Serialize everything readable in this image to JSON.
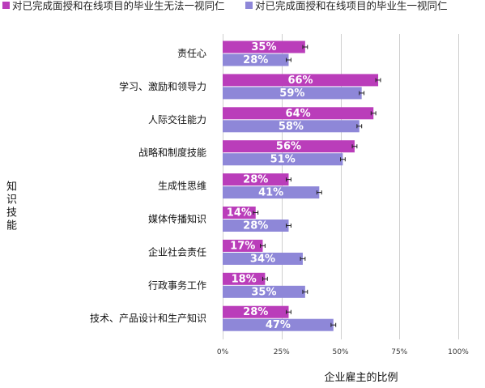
{
  "chart_data": {
    "type": "bar",
    "orientation": "horizontal",
    "categories": [
      "责任心",
      "学习、激励和领导力",
      "人际交往能力",
      "战略和制度技能",
      "生成性思维",
      "媒体传播知识",
      "企业社会责任",
      "行政事务工作",
      "技术、产品设计和生产知识"
    ],
    "series": [
      {
        "name": "对已完成面授和在线项目的毕业生无法一视同仁",
        "color": "#BA3DBA",
        "values": [
          35,
          66,
          64,
          56,
          28,
          14,
          17,
          18,
          28
        ],
        "error": [
          1,
          1,
          1,
          1,
          1,
          1,
          1,
          1,
          1
        ]
      },
      {
        "name": "对已完成面授和在线项目的毕业生一视同仁",
        "color": "#8E87D8",
        "values": [
          28,
          59,
          58,
          51,
          41,
          28,
          34,
          35,
          47
        ],
        "error": [
          1,
          1,
          1,
          1,
          1,
          1,
          1,
          1,
          1
        ]
      }
    ],
    "unit": "%",
    "data_label_color": "#FFFFFF",
    "xlabel": "企业雇主的比例",
    "ylabel": "知识技能",
    "xlim": [
      0,
      100
    ],
    "xticks": [
      0,
      25,
      50,
      75,
      100
    ],
    "xtick_labels": [
      "0%",
      "25%",
      "50%",
      "75%",
      "100%"
    ],
    "grid": true,
    "legend": "top"
  }
}
